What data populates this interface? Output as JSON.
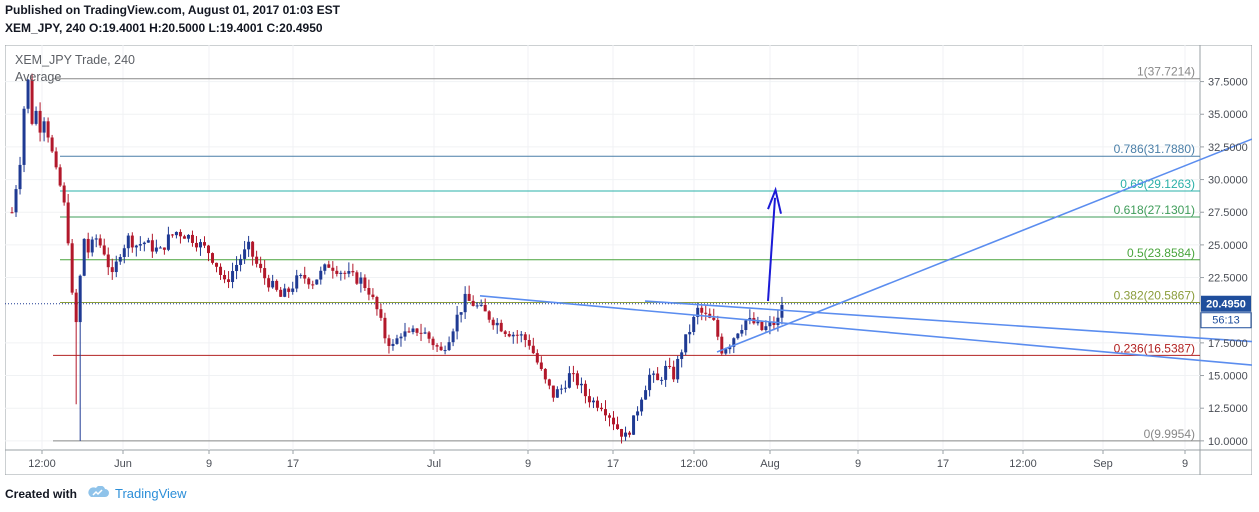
{
  "header": {
    "published": "Published on TradingView.com, August 01, 2017 01:03 EST",
    "ohlc": "XEM_JPY, 240  O:19.4001 H:20.5000 L:19.4001 C:20.4950"
  },
  "footer": {
    "created_with": "Created with",
    "brand": "TradingView"
  },
  "colors": {
    "candle_up": "#1f3a93",
    "candle_down": "#b2182b",
    "trendline": "#5b8def",
    "arrow": "#1a1ad6",
    "price_badge": "#1f4e9c"
  },
  "chart_data": {
    "type": "candlestick",
    "title": "XEM_JPY Trade, 240",
    "legend": "Average",
    "current_price": "20.4950",
    "countdown": "56:13",
    "y_ticks": [
      "37.5000",
      "35.0000",
      "32.5000",
      "30.0000",
      "27.5000",
      "25.0000",
      "22.5000",
      "17.5000",
      "15.0000",
      "12.5000",
      "10.0000"
    ],
    "x_ticks": [
      "12:00",
      "Jun",
      "9",
      "17",
      "Jul",
      "9",
      "17",
      "12:00",
      "Aug",
      "9",
      "17",
      "12:00",
      "Sep",
      "9"
    ],
    "ylim": [
      9.3,
      40.3
    ],
    "fib_levels": [
      {
        "label": "1(37.7214)",
        "value": 37.7214,
        "color": "#888888"
      },
      {
        "label": "0.786(31.7880)",
        "value": 31.788,
        "color": "#4a7fa8"
      },
      {
        "label": "0.69(29.1263)",
        "value": 29.1263,
        "color": "#2ab0a8"
      },
      {
        "label": "0.618(27.1301)",
        "value": 27.1301,
        "color": "#3f9d5a"
      },
      {
        "label": "0.5(23.8584)",
        "value": 23.8584,
        "color": "#49a43c"
      },
      {
        "label": "0.382(20.5867)",
        "value": 20.5867,
        "color": "#8a9c3a"
      },
      {
        "label": "0.236(16.5387)",
        "value": 16.5387,
        "color": "#b22222"
      },
      {
        "label": "0(9.9954)",
        "value": 9.9954,
        "color": "#888888"
      }
    ],
    "price_path": [
      [
        1,
        27.5
      ],
      [
        2,
        29.5
      ],
      [
        3,
        31.5
      ],
      [
        4,
        35.5
      ],
      [
        5,
        37.5
      ],
      [
        6,
        34.5
      ],
      [
        7,
        35.2
      ],
      [
        8,
        34.0
      ],
      [
        9,
        34.8
      ],
      [
        10,
        33.5
      ],
      [
        11,
        32.0
      ],
      [
        12,
        30.5
      ],
      [
        13,
        29.5
      ],
      [
        14,
        28.0
      ],
      [
        15,
        25.5
      ],
      [
        16,
        21.0
      ],
      [
        17,
        19.0
      ],
      [
        18,
        22.5
      ],
      [
        19,
        25.5
      ],
      [
        20,
        24.5
      ],
      [
        22,
        25.5
      ],
      [
        24,
        24.5
      ],
      [
        26,
        22.5
      ],
      [
        28,
        24.5
      ],
      [
        30,
        25.5
      ],
      [
        32,
        25.0
      ],
      [
        34,
        25.2
      ],
      [
        36,
        24.8
      ],
      [
        38,
        24.5
      ],
      [
        40,
        25.5
      ],
      [
        42,
        26.0
      ],
      [
        44,
        25.8
      ],
      [
        46,
        25.5
      ],
      [
        48,
        25.0
      ],
      [
        50,
        24.5
      ],
      [
        52,
        23.5
      ],
      [
        54,
        22.0
      ],
      [
        56,
        23.0
      ],
      [
        58,
        24.0
      ],
      [
        60,
        24.8
      ],
      [
        62,
        23.5
      ],
      [
        64,
        22.5
      ],
      [
        66,
        21.8
      ],
      [
        68,
        21.0
      ],
      [
        70,
        21.5
      ],
      [
        72,
        22.3
      ],
      [
        74,
        22.5
      ],
      [
        76,
        22.2
      ],
      [
        78,
        22.8
      ],
      [
        80,
        23.5
      ],
      [
        82,
        23.2
      ],
      [
        84,
        22.8
      ],
      [
        86,
        22.5
      ],
      [
        88,
        22.3
      ],
      [
        90,
        21.5
      ],
      [
        92,
        20.0
      ],
      [
        94,
        18.0
      ],
      [
        96,
        17.2
      ],
      [
        98,
        18.3
      ],
      [
        100,
        18.0
      ],
      [
        102,
        18.5
      ],
      [
        104,
        18.2
      ],
      [
        106,
        17.5
      ],
      [
        108,
        16.8
      ],
      [
        110,
        18.0
      ],
      [
        112,
        19.5
      ],
      [
        114,
        20.8
      ],
      [
        116,
        20.5
      ],
      [
        118,
        20.0
      ],
      [
        120,
        19.5
      ],
      [
        122,
        19.0
      ],
      [
        124,
        18.5
      ],
      [
        126,
        18.2
      ],
      [
        128,
        18.0
      ],
      [
        130,
        17.5
      ],
      [
        132,
        16.0
      ],
      [
        134,
        14.5
      ],
      [
        136,
        13.5
      ],
      [
        138,
        14.0
      ],
      [
        140,
        15.0
      ],
      [
        142,
        14.5
      ],
      [
        144,
        13.5
      ],
      [
        146,
        13.0
      ],
      [
        148,
        12.8
      ],
      [
        150,
        12.0
      ],
      [
        152,
        11.0
      ],
      [
        154,
        10.3
      ],
      [
        156,
        11.5
      ],
      [
        158,
        13.5
      ],
      [
        160,
        15.0
      ],
      [
        162,
        14.5
      ],
      [
        164,
        15.5
      ],
      [
        166,
        15.0
      ],
      [
        168,
        17.0
      ],
      [
        170,
        18.5
      ],
      [
        172,
        20.0
      ],
      [
        174,
        19.5
      ],
      [
        176,
        19.0
      ],
      [
        178,
        17.0
      ],
      [
        180,
        17.5
      ],
      [
        182,
        18.5
      ],
      [
        184,
        19.2
      ],
      [
        186,
        19.0
      ],
      [
        188,
        18.5
      ],
      [
        190,
        18.8
      ],
      [
        192,
        19.2
      ],
      [
        193,
        20.5
      ]
    ]
  }
}
